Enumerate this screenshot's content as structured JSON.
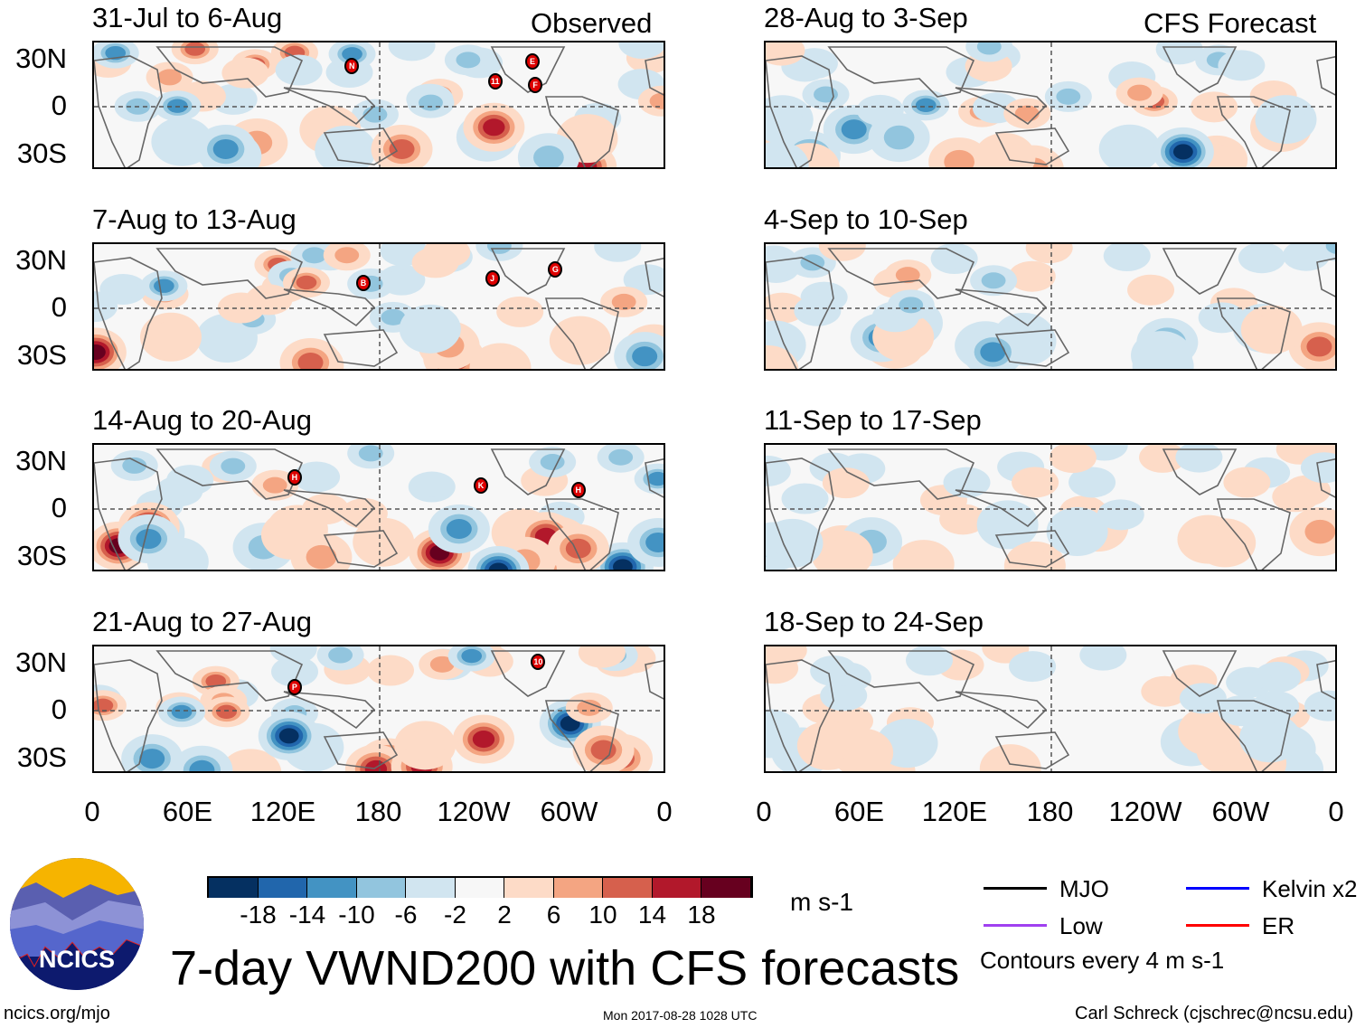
{
  "observed_label": "Observed",
  "forecast_label": "CFS Forecast",
  "latitude_labels": [
    "30N",
    "0",
    "30S"
  ],
  "longitude_labels": [
    "0",
    "60E",
    "120E",
    "180",
    "120W",
    "60W",
    "0"
  ],
  "panels_observed": [
    {
      "title": "31-Jul to 6-Aug",
      "storms": [
        "N",
        "11",
        "E",
        "F"
      ]
    },
    {
      "title": "7-Aug to 13-Aug",
      "storms": [
        "B",
        "J",
        "G"
      ]
    },
    {
      "title": "14-Aug to 20-Aug",
      "storms": [
        "H",
        "K",
        "H"
      ]
    },
    {
      "title": "21-Aug to 27-Aug",
      "storms": [
        "P",
        "10"
      ]
    }
  ],
  "panels_forecast": [
    {
      "title": "28-Aug to 3-Sep"
    },
    {
      "title": "4-Sep to 10-Sep"
    },
    {
      "title": "11-Sep to 17-Sep"
    },
    {
      "title": "18-Sep to 24-Sep"
    }
  ],
  "colorbar": {
    "colors": [
      "#053061",
      "#2166ac",
      "#4393c3",
      "#92c5de",
      "#d1e5f0",
      "#f7f7f7",
      "#fddbc7",
      "#f4a582",
      "#d6604d",
      "#b2182b",
      "#67001f"
    ],
    "labels": [
      "-18",
      "-14",
      "-10",
      "-6",
      "-2",
      "2",
      "6",
      "10",
      "14",
      "18"
    ],
    "units": "m s-1"
  },
  "legend": {
    "items": [
      {
        "label": "MJO",
        "color": "#000000"
      },
      {
        "label": "Kelvin x2",
        "color": "#0000ff"
      },
      {
        "label": "Low",
        "color": "#a040f0"
      },
      {
        "label": "ER",
        "color": "#ff0000"
      }
    ],
    "contours": "Contours every 4 m s-1"
  },
  "logo_text": "NCICS",
  "main_title": "7-day VWND200 with CFS forecasts",
  "footer": {
    "url": "ncics.org/mjo",
    "timestamp": "Mon 2017-08-28 1028 UTC",
    "author": "Carl Schreck (cjschrec@ncsu.edu)"
  }
}
